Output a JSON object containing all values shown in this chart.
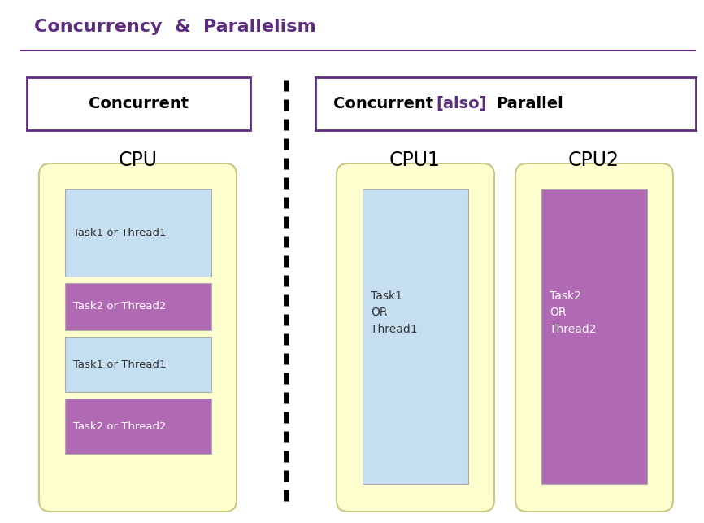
{
  "title": "Concurrency  &  Parallelism",
  "title_color": "#5c2d7e",
  "title_fontsize": 16,
  "bg_color": "#ffffff",
  "purple_color": "#5c2d7e",
  "blue_task_color": "#c5dff0",
  "purple_task_color": "#b06ab3",
  "cpu_bg_color": "#ffffd0",
  "cpu_border_color": "#c8c882",
  "concurrent_label": "Concurrent",
  "cpu_label": "CPU",
  "cpu1_label": "CPU1",
  "cpu2_label": "CPU2",
  "task1_label": "Task1 or Thread1",
  "task2_label": "Task2 or Thread2",
  "task1_parallel": "Task1\nOR\nThread1",
  "task2_parallel": "Task2\nOR\nThread2",
  "fig_w": 8.66,
  "fig_h": 6.43,
  "dpi": 100
}
